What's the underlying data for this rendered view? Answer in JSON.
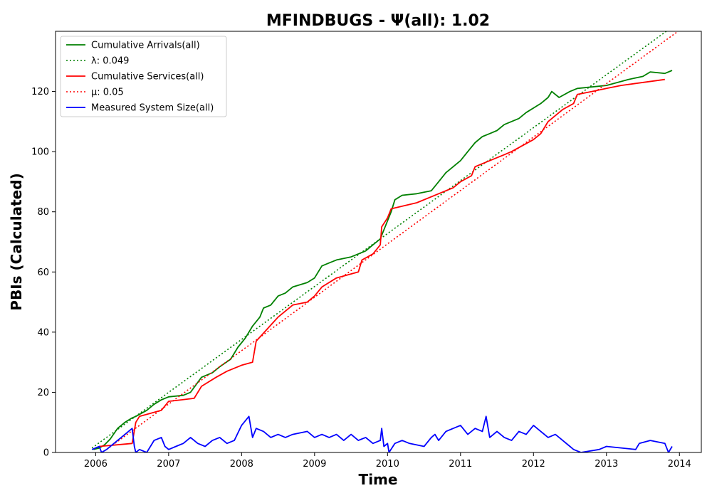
{
  "chart_data": {
    "type": "line",
    "title": "MFINDBUGS -  Ψ(all): 1.02",
    "xlabel": "Time",
    "ylabel": "PBIs (Calculated)",
    "xlim": [
      2005.45,
      2014.3
    ],
    "ylim": [
      0,
      140
    ],
    "x_ticks": [
      2006,
      2007,
      2008,
      2009,
      2010,
      2011,
      2012,
      2013,
      2014
    ],
    "x_tick_labels": [
      "2006",
      "2007",
      "2008",
      "2009",
      "2010",
      "2011",
      "2012",
      "2013",
      "2014"
    ],
    "y_ticks": [
      0,
      20,
      40,
      60,
      80,
      100,
      120
    ],
    "y_tick_labels": [
      "0",
      "20",
      "40",
      "60",
      "80",
      "100",
      "120"
    ],
    "grid": false,
    "legend_position": "top-left",
    "series": [
      {
        "name": "Cumulative Arrivals(all)",
        "color": "#008000",
        "style": "solid",
        "x": [
          2005.97,
          2006.05,
          2006.12,
          2006.2,
          2006.3,
          2006.4,
          2006.5,
          2006.55,
          2006.7,
          2006.8,
          2006.9,
          2007.0,
          2007.2,
          2007.3,
          2007.45,
          2007.6,
          2007.7,
          2007.85,
          2007.95,
          2008.05,
          2008.15,
          2008.25,
          2008.3,
          2008.4,
          2008.5,
          2008.6,
          2008.7,
          2008.9,
          2009.0,
          2009.1,
          2009.2,
          2009.3,
          2009.4,
          2009.5,
          2009.6,
          2009.7,
          2009.8,
          2009.9,
          2009.95,
          2010.05,
          2010.1,
          2010.2,
          2010.4,
          2010.6,
          2010.7,
          2010.8,
          2010.9,
          2011.0,
          2011.1,
          2011.2,
          2011.3,
          2011.4,
          2011.5,
          2011.6,
          2011.8,
          2011.9,
          2012.1,
          2012.2,
          2012.25,
          2012.35,
          2012.5,
          2012.6,
          2012.8,
          2013.0,
          2013.3,
          2013.5,
          2013.6,
          2013.8,
          2013.9
        ],
        "y": [
          1,
          1.5,
          2.5,
          4.5,
          8,
          10,
          11.5,
          12,
          14,
          16,
          17.5,
          18.5,
          19,
          20,
          25,
          26.5,
          28.5,
          31,
          35,
          38,
          42,
          45,
          48,
          49,
          52,
          53,
          55,
          56.5,
          58,
          62,
          63,
          64,
          64.5,
          65,
          66,
          67,
          69,
          71,
          74,
          80,
          84,
          85.5,
          86,
          87,
          90,
          93,
          95,
          97,
          100,
          103,
          105,
          106,
          107,
          109,
          111,
          113,
          116,
          118,
          120,
          118,
          120,
          121,
          121.5,
          122,
          124,
          125,
          126.5,
          126,
          127
        ]
      },
      {
        "name": "λ: 0.049",
        "color": "#008000",
        "style": "dotted",
        "x": [
          2005.95,
          2013.82
        ],
        "y": [
          1.5,
          140
        ]
      },
      {
        "name": "Cumulative Services(all)",
        "color": "#ff0000",
        "style": "solid",
        "x": [
          2006.05,
          2006.5,
          2006.55,
          2006.6,
          2006.9,
          2007.0,
          2007.35,
          2007.45,
          2007.65,
          2007.8,
          2008.0,
          2008.15,
          2008.2,
          2008.35,
          2008.5,
          2008.7,
          2008.9,
          2009.0,
          2009.1,
          2009.3,
          2009.6,
          2009.65,
          2009.8,
          2009.9,
          2009.92,
          2010.0,
          2010.05,
          2010.4,
          2010.6,
          2010.7,
          2010.9,
          2011.0,
          2011.15,
          2011.2,
          2011.4,
          2011.6,
          2011.7,
          2012.0,
          2012.1,
          2012.2,
          2012.4,
          2012.55,
          2012.6,
          2012.8,
          2013.0,
          2013.2,
          2013.8
        ],
        "y": [
          2,
          3,
          10,
          12,
          14,
          17,
          18,
          22,
          25,
          27,
          29,
          30,
          37,
          41,
          45,
          49,
          50,
          52,
          55,
          58,
          60,
          64,
          66,
          69,
          75,
          78,
          81,
          83,
          85,
          86,
          88,
          90,
          92,
          95,
          97,
          99,
          100,
          104,
          106,
          110,
          114,
          116,
          119,
          120,
          121,
          122,
          124
        ]
      },
      {
        "name": "μ: 0.05",
        "color": "#ff0000",
        "style": "dotted",
        "x": [
          2006.15,
          2013.98
        ],
        "y": [
          1,
          140
        ]
      },
      {
        "name": "Measured System Size(all)",
        "color": "#0000ff",
        "style": "solid",
        "x": [
          2005.95,
          2006.05,
          2006.08,
          2006.15,
          2006.25,
          2006.35,
          2006.5,
          2006.53,
          2006.55,
          2006.6,
          2006.7,
          2006.8,
          2006.9,
          2006.95,
          2007.0,
          2007.1,
          2007.2,
          2007.3,
          2007.4,
          2007.5,
          2007.6,
          2007.7,
          2007.8,
          2007.9,
          2008.0,
          2008.1,
          2008.15,
          2008.2,
          2008.3,
          2008.4,
          2008.5,
          2008.6,
          2008.7,
          2008.9,
          2009.0,
          2009.1,
          2009.2,
          2009.3,
          2009.4,
          2009.5,
          2009.6,
          2009.7,
          2009.8,
          2009.9,
          2009.92,
          2009.95,
          2010.0,
          2010.02,
          2010.1,
          2010.2,
          2010.3,
          2010.5,
          2010.6,
          2010.65,
          2010.7,
          2010.8,
          2011.0,
          2011.1,
          2011.2,
          2011.3,
          2011.35,
          2011.4,
          2011.5,
          2011.6,
          2011.7,
          2011.8,
          2011.9,
          2012.0,
          2012.1,
          2012.2,
          2012.3,
          2012.4,
          2012.5,
          2012.55,
          2012.65,
          2012.9,
          2013.0,
          2013.4,
          2013.45,
          2013.6,
          2013.8,
          2013.85,
          2013.9
        ],
        "y": [
          1,
          2,
          0,
          1,
          3,
          5,
          8,
          2,
          0,
          1,
          0,
          4,
          5,
          2,
          1,
          2,
          3,
          5,
          3,
          2,
          4,
          5,
          3,
          4,
          9,
          12,
          5,
          8,
          7,
          5,
          6,
          5,
          6,
          7,
          5,
          6,
          5,
          6,
          4,
          6,
          4,
          5,
          3,
          4,
          8,
          2,
          3,
          0,
          3,
          4,
          3,
          2,
          5,
          6,
          4,
          7,
          9,
          6,
          8,
          7,
          12,
          5,
          7,
          5,
          4,
          7,
          6,
          9,
          7,
          5,
          6,
          4,
          2,
          1,
          0,
          1,
          2,
          1,
          3,
          4,
          3,
          0,
          2
        ]
      }
    ]
  }
}
